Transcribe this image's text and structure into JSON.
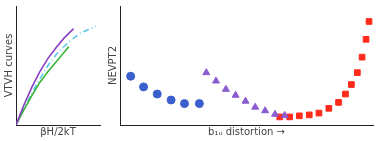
{
  "chart_data": [
    {
      "type": "line",
      "x_label": "βH/2kT",
      "y_label": "VTVH curves",
      "xlim": [
        0,
        1.05
      ],
      "ylim": [
        0,
        1
      ],
      "tick_labels": false,
      "grid": false,
      "series": [
        {
          "color": "#8b3fbf",
          "line_style": "solid",
          "x": [
            0,
            0.1,
            0.2,
            0.3,
            0.4,
            0.5,
            0.6,
            0.72
          ],
          "values": [
            0,
            0.17,
            0.32,
            0.45,
            0.56,
            0.65,
            0.73,
            0.81
          ]
        },
        {
          "color": "#3cb43c",
          "line_style": "solid",
          "x": [
            0,
            0.1,
            0.2,
            0.3,
            0.4,
            0.5,
            0.6,
            0.66
          ],
          "values": [
            0,
            0.13,
            0.25,
            0.36,
            0.45,
            0.53,
            0.61,
            0.66
          ]
        },
        {
          "color": "#5bc8e8",
          "line_style": "dashdot",
          "x": [
            0,
            0.1,
            0.2,
            0.3,
            0.4,
            0.5,
            0.6,
            0.7,
            0.8,
            0.9,
            1.0
          ],
          "values": [
            0,
            0.14,
            0.27,
            0.39,
            0.5,
            0.59,
            0.66,
            0.72,
            0.77,
            0.8,
            0.83
          ]
        }
      ]
    },
    {
      "type": "scatter",
      "x_label": "b₁ᵤ distortion →",
      "y_label": "NEVPT2",
      "xlim": [
        0,
        102
      ],
      "ylim": [
        0,
        100
      ],
      "tick_labels": false,
      "grid": false,
      "series": [
        {
          "color": "#3a5fcd",
          "marker": "circle",
          "x": [
            4.3,
            9.5,
            15,
            20.6,
            26,
            32
          ],
          "values": [
            41,
            32,
            26,
            21,
            18,
            18
          ]
        },
        {
          "color": "#8a5ccf",
          "marker": "triangle",
          "x": [
            34.8,
            38.7,
            42.7,
            46.6,
            50.6,
            54.5,
            58.5,
            62.5,
            66.4
          ],
          "values": [
            44,
            37,
            30,
            25,
            20,
            15,
            12,
            9,
            8
          ]
        },
        {
          "color": "#ff2a1a",
          "marker": "square",
          "x": [
            64.4,
            68.4,
            72.3,
            76.3,
            80.2,
            84.2,
            88.1,
            90.9,
            93.3,
            95.7,
            97.6,
            99.2,
            100.4
          ],
          "values": [
            6.8,
            6.8,
            7.7,
            8.5,
            10,
            14,
            19,
            26,
            34,
            44,
            57,
            72,
            87
          ]
        }
      ]
    }
  ]
}
